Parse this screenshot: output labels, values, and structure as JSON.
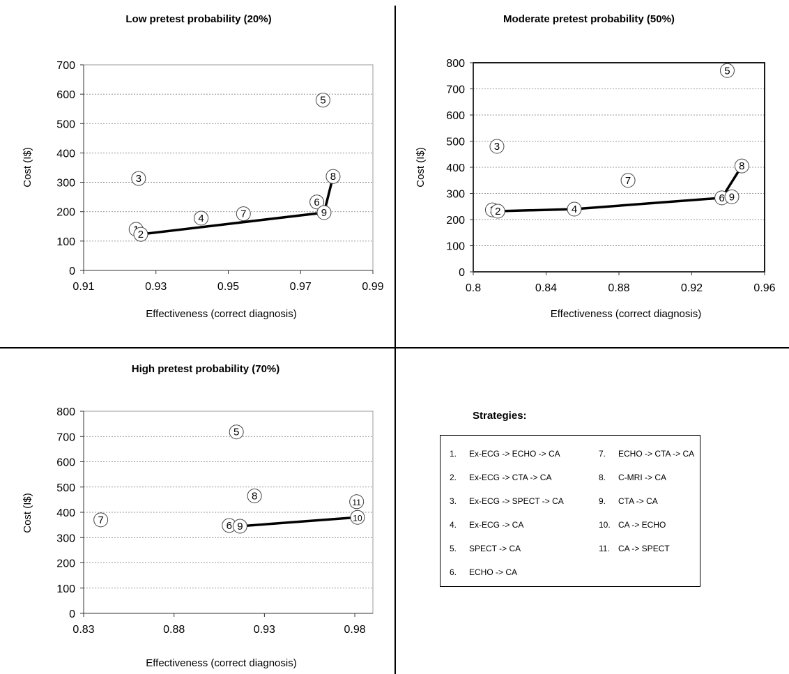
{
  "chart_data": [
    {
      "type": "scatter",
      "title": "Low pretest probability (20%)",
      "xlabel": "Effectiveness (correct diagnosis)",
      "ylabel": "Cost (I$)",
      "xlim": [
        0.91,
        0.99
      ],
      "ylim": [
        0,
        700
      ],
      "xticks": [
        0.91,
        0.93,
        0.95,
        0.97,
        0.99
      ],
      "xtick_labels": [
        "0.91",
        "0.93",
        "0.95",
        "0.97",
        "0.99"
      ],
      "yticks": [
        0,
        100,
        200,
        300,
        400,
        500,
        600,
        700
      ],
      "ytick_labels": [
        "0",
        "100",
        "200",
        "300",
        "400",
        "500",
        "600",
        "700"
      ],
      "grid": "horizontal dashed",
      "points": [
        {
          "label": "1",
          "x": 0.9245,
          "y": 140
        },
        {
          "label": "2",
          "x": 0.9258,
          "y": 123
        },
        {
          "label": "3",
          "x": 0.9252,
          "y": 313
        },
        {
          "label": "4",
          "x": 0.9425,
          "y": 178
        },
        {
          "label": "5",
          "x": 0.9762,
          "y": 580
        },
        {
          "label": "6",
          "x": 0.9745,
          "y": 233
        },
        {
          "label": "7",
          "x": 0.9542,
          "y": 193
        },
        {
          "label": "8",
          "x": 0.979,
          "y": 320
        },
        {
          "label": "9",
          "x": 0.9765,
          "y": 197
        }
      ],
      "frontier": [
        "2",
        "9",
        "8"
      ]
    },
    {
      "type": "scatter",
      "title": "Moderate pretest probability (50%)",
      "xlabel": "Effectiveness (correct diagnosis)",
      "ylabel": "Cost (I$)",
      "xlim": [
        0.8,
        0.96
      ],
      "ylim": [
        0,
        800
      ],
      "xticks": [
        0.8,
        0.84,
        0.88,
        0.92,
        0.96
      ],
      "xtick_labels": [
        "0.8",
        "0.84",
        "0.88",
        "0.92",
        "0.96"
      ],
      "yticks": [
        0,
        100,
        200,
        300,
        400,
        500,
        600,
        700,
        800
      ],
      "ytick_labels": [
        "0",
        "100",
        "200",
        "300",
        "400",
        "500",
        "600",
        "700",
        "800"
      ],
      "grid": "horizontal dashed",
      "points": [
        {
          "label": "1",
          "x": 0.8105,
          "y": 237
        },
        {
          "label": "2",
          "x": 0.8135,
          "y": 232
        },
        {
          "label": "3",
          "x": 0.813,
          "y": 480
        },
        {
          "label": "4",
          "x": 0.8555,
          "y": 240
        },
        {
          "label": "5",
          "x": 0.9395,
          "y": 770
        },
        {
          "label": "6",
          "x": 0.9365,
          "y": 283
        },
        {
          "label": "7",
          "x": 0.885,
          "y": 350
        },
        {
          "label": "8",
          "x": 0.9475,
          "y": 405
        },
        {
          "label": "9",
          "x": 0.942,
          "y": 287
        }
      ],
      "frontier": [
        "2",
        "4",
        "6",
        "8"
      ]
    },
    {
      "type": "scatter",
      "title": "High pretest probability (70%)",
      "xlabel": "Effectiveness (correct diagnosis)",
      "ylabel": "Cost (I$)",
      "xlim": [
        0.83,
        0.99
      ],
      "ylim": [
        0,
        800
      ],
      "xticks": [
        0.83,
        0.88,
        0.93,
        0.98
      ],
      "xtick_labels": [
        "0.83",
        "0.88",
        "0.93",
        "0.98"
      ],
      "yticks": [
        0,
        100,
        200,
        300,
        400,
        500,
        600,
        700,
        800
      ],
      "ytick_labels": [
        "0",
        "100",
        "200",
        "300",
        "400",
        "500",
        "600",
        "700",
        "800"
      ],
      "grid": "horizontal dashed",
      "points": [
        {
          "label": "5",
          "x": 0.9145,
          "y": 718
        },
        {
          "label": "6",
          "x": 0.9105,
          "y": 348
        },
        {
          "label": "7",
          "x": 0.8395,
          "y": 370
        },
        {
          "label": "8",
          "x": 0.9245,
          "y": 465
        },
        {
          "label": "9",
          "x": 0.9165,
          "y": 345
        },
        {
          "label": "10",
          "x": 0.9815,
          "y": 380
        },
        {
          "label": "11",
          "x": 0.981,
          "y": 442
        }
      ],
      "frontier": [
        "9",
        "10"
      ]
    }
  ],
  "legend": {
    "title": "Strategies:",
    "items": [
      {
        "num": "1.",
        "label": "Ex-ECG -> ECHO -> CA"
      },
      {
        "num": "2.",
        "label": "Ex-ECG -> CTA -> CA"
      },
      {
        "num": "3.",
        "label": "Ex-ECG -> SPECT -> CA"
      },
      {
        "num": "4.",
        "label": "Ex-ECG -> CA"
      },
      {
        "num": "5.",
        "label": "SPECT -> CA"
      },
      {
        "num": "6.",
        "label": "ECHO -> CA"
      },
      {
        "num": "7.",
        "label": "ECHO -> CTA -> CA"
      },
      {
        "num": "8.",
        "label": "C-MRI -> CA"
      },
      {
        "num": "9.",
        "label": "CTA -> CA"
      },
      {
        "num": "10.",
        "label": "CA -> ECHO"
      },
      {
        "num": "11.",
        "label": "CA -> SPECT"
      }
    ]
  }
}
